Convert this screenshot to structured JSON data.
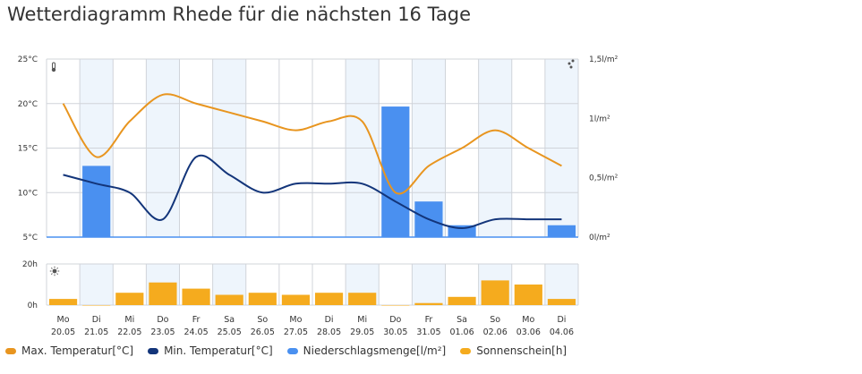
{
  "title": "Wetterdiagramm Rhede für die nächsten 16 Tage",
  "colors": {
    "max_temp": "#e8951f",
    "min_temp": "#13357a",
    "precip": "#4a90f0",
    "sunshine": "#f5ab1e",
    "weekend_band": "#eef5fc",
    "grid": "#d0d4da"
  },
  "icons": {
    "thermometer": "thermometer-icon",
    "rain": "rain-drops-icon",
    "sun": "sun-icon"
  },
  "chart_data": [
    {
      "type": "line",
      "categories": [
        "Mo|20.05",
        "Di|21.05",
        "Mi|22.05",
        "Do|23.05",
        "Fr|24.05",
        "Sa|25.05",
        "So|26.05",
        "Mo|27.05",
        "Di|28.05",
        "Mi|29.05",
        "Do|30.05",
        "Fr|31.05",
        "Sa|01.06",
        "So|02.06",
        "Mo|03.06",
        "Di|04.06"
      ],
      "weekdays": [
        "Mo",
        "Di",
        "Mi",
        "Do",
        "Fr",
        "Sa",
        "So",
        "Mo",
        "Di",
        "Mi",
        "Do",
        "Fr",
        "Sa",
        "So",
        "Mo",
        "Di"
      ],
      "dates": [
        "20.05",
        "21.05",
        "22.05",
        "23.05",
        "24.05",
        "25.05",
        "26.05",
        "27.05",
        "28.05",
        "29.05",
        "30.05",
        "31.05",
        "01.06",
        "02.06",
        "03.06",
        "04.06"
      ],
      "series": [
        {
          "name": "Max. Temperatur[°C]",
          "axis": "left",
          "values": [
            20,
            14,
            18,
            21,
            20,
            19,
            18,
            17,
            18,
            18,
            10,
            13,
            15,
            17,
            15,
            13
          ]
        },
        {
          "name": "Min. Temperatur[°C]",
          "axis": "left",
          "values": [
            12,
            11,
            10,
            7,
            14,
            12,
            10,
            11,
            11,
            11,
            9,
            7,
            6,
            7,
            7,
            7
          ]
        },
        {
          "name": "Niederschlagsmenge[l/m²]",
          "type": "bar",
          "axis": "right",
          "values": [
            0,
            0.6,
            0,
            0,
            0,
            0,
            0,
            0,
            0,
            0,
            1.1,
            0.3,
            0.1,
            0,
            0,
            0.1
          ]
        }
      ],
      "y_left": {
        "ylim": [
          5,
          25
        ],
        "ticks": [
          "25°C",
          "20°C",
          "15°C",
          "10°C",
          "5°C"
        ]
      },
      "y_right": {
        "ylim": [
          0,
          1.5
        ],
        "ticks": [
          "1,5l/m²",
          "1l/m²",
          "0,5l/m²",
          "0l/m²"
        ]
      },
      "grid": true
    },
    {
      "type": "bar",
      "series": [
        {
          "name": "Sonnenschein[h]",
          "values": [
            3,
            0,
            6,
            11,
            8,
            5,
            6,
            5,
            6,
            6,
            0,
            1,
            4,
            12,
            10,
            3
          ]
        }
      ],
      "ylim": [
        0,
        20
      ],
      "ticks": [
        "20h",
        "0h"
      ],
      "grid": true
    }
  ],
  "legend": [
    {
      "label": "Max. Temperatur[°C]",
      "color": "#e8951f"
    },
    {
      "label": "Min. Temperatur[°C]",
      "color": "#13357a"
    },
    {
      "label": "Niederschlagsmenge[l/m²]",
      "color": "#4a90f0"
    },
    {
      "label": "Sonnenschein[h]",
      "color": "#f5ab1e"
    }
  ]
}
